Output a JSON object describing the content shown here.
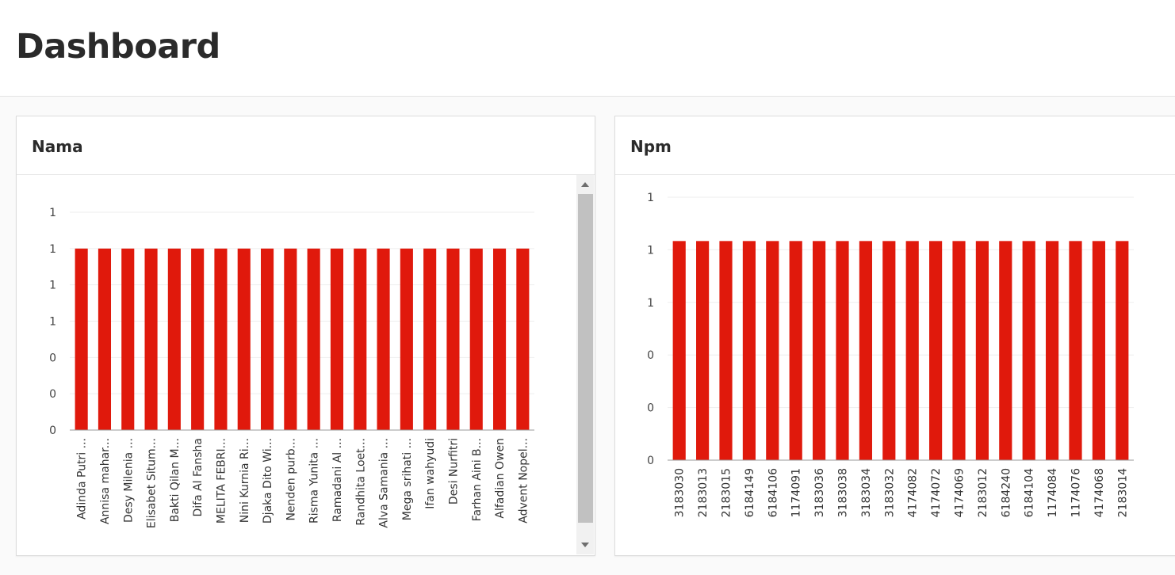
{
  "page": {
    "title": "Dashboard"
  },
  "colors": {
    "bar": "#e0190c",
    "grid": "#eeeeee",
    "axis": "#999999"
  },
  "chart_data": [
    {
      "type": "bar",
      "title": "Nama",
      "categories": [
        "Adinda Putri ...",
        "Annisa mahar...",
        "Desy Milenia ...",
        "Elisabet Situm...",
        "Bakti Qilan M...",
        "Difa Al Fansha",
        "MELITA FEBRI...",
        "Nini Kurnia Ri...",
        "Djaka Dito Wi...",
        "Nenden purb...",
        "Risma Yunita ...",
        "Ramadani Al ...",
        "Randhita Loet...",
        "Alva Samania ...",
        "Mega srihati ...",
        "Ifan wahyudi",
        "Desi Nurfitri",
        "Farhan Aini B...",
        "Alfadian Owen",
        "Advent Nopel..."
      ],
      "values": [
        1,
        1,
        1,
        1,
        1,
        1,
        1,
        1,
        1,
        1,
        1,
        1,
        1,
        1,
        1,
        1,
        1,
        1,
        1,
        1
      ],
      "ylim": [
        0,
        1.2
      ],
      "yticks": [
        "0",
        "0",
        "0",
        "1",
        "1",
        "1",
        "1"
      ],
      "grid": true,
      "legend": "none"
    },
    {
      "type": "bar",
      "title": "Npm",
      "categories": [
        "3183030",
        "2183013",
        "2183015",
        "6184149",
        "6184106",
        "1174091",
        "3183036",
        "3183038",
        "3183034",
        "3183032",
        "4174082",
        "4174072",
        "4174069",
        "2183012",
        "6184240",
        "6184104",
        "1174084",
        "1174076",
        "4174068",
        "2183014"
      ],
      "values": [
        1,
        1,
        1,
        1,
        1,
        1,
        1,
        1,
        1,
        1,
        1,
        1,
        1,
        1,
        1,
        1,
        1,
        1,
        1,
        1
      ],
      "ylim": [
        0,
        1.2
      ],
      "yticks": [
        "0",
        "0",
        "0",
        "1",
        "1",
        "1"
      ],
      "grid": true,
      "legend": "none"
    }
  ]
}
